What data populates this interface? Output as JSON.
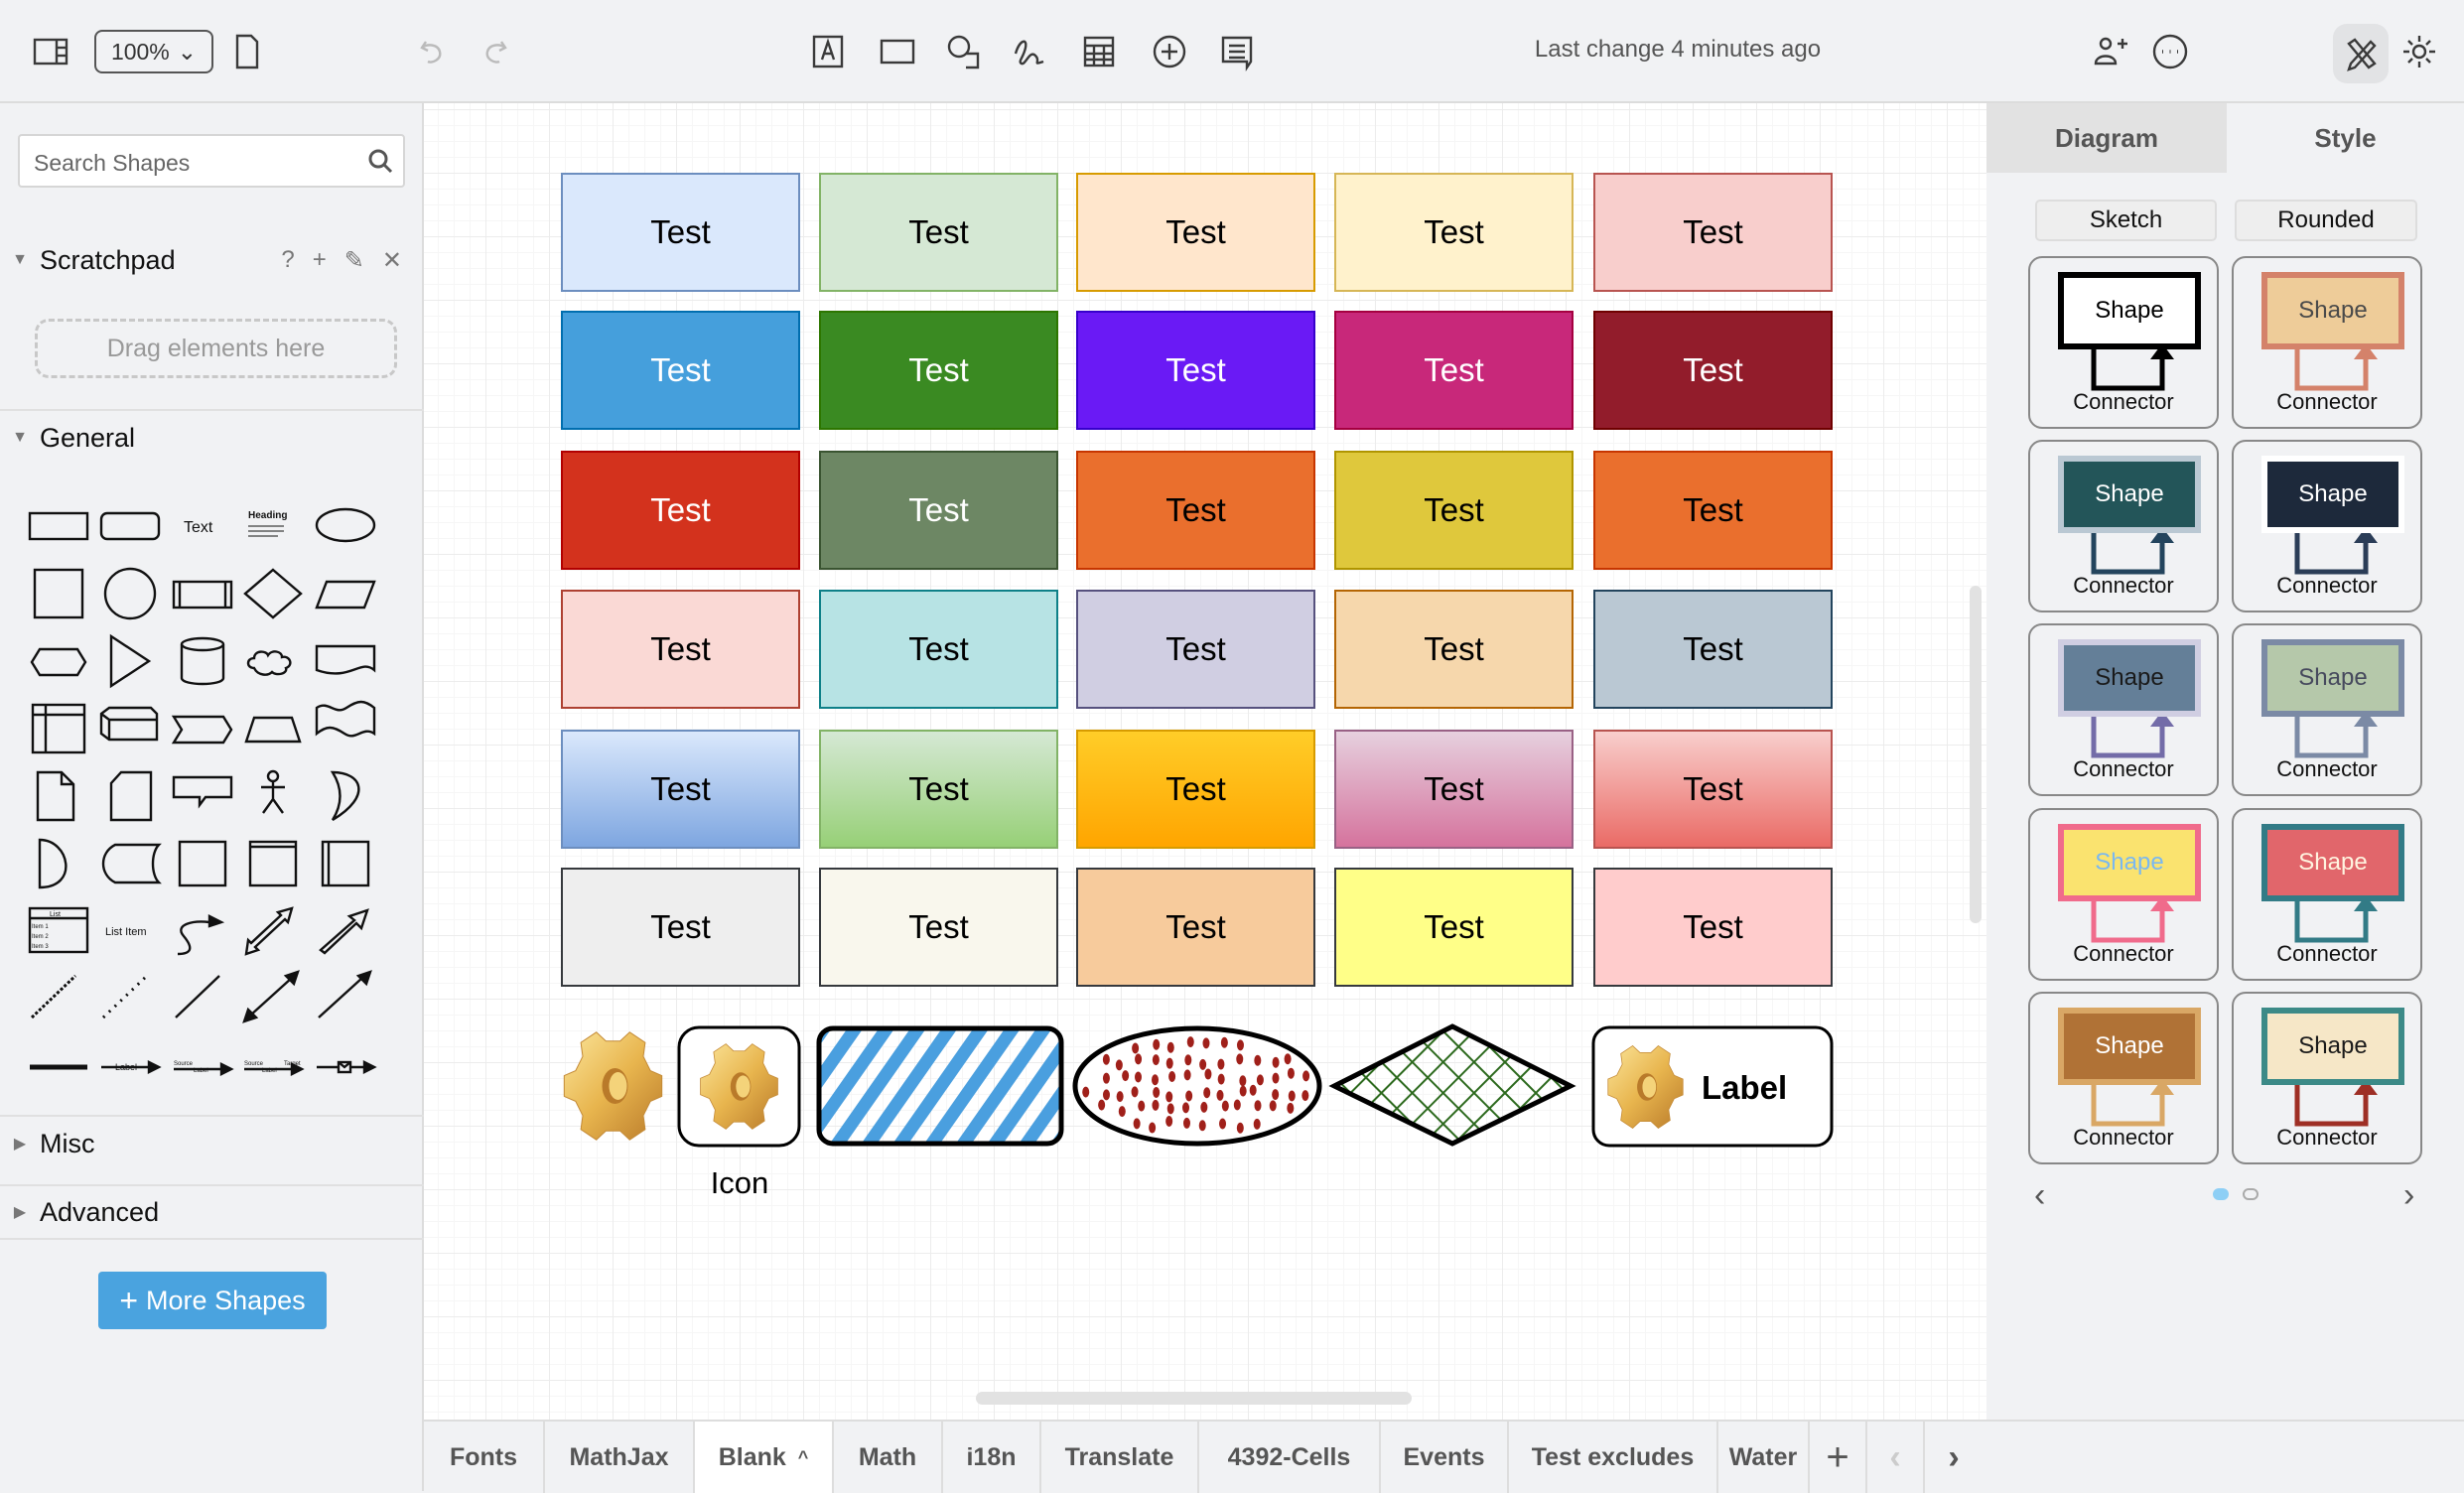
{
  "toolbar": {
    "zoom": "100%",
    "last_change": "Last change 4 minutes ago",
    "icons": [
      "format-panel-icon",
      "page-icon",
      "undo-icon",
      "redo-icon",
      "text-icon",
      "rectangle-icon",
      "shapes-icon",
      "freehand-icon",
      "table-icon",
      "insert-icon",
      "comment-icon",
      "share-icon",
      "more-icon",
      "edit-tools-icon",
      "theme-icon"
    ]
  },
  "sidebar": {
    "search_placeholder": "Search Shapes",
    "scratchpad": "Scratchpad",
    "scratchpad_actions": [
      "?",
      "+",
      "✎",
      "✕"
    ],
    "drag_hint": "Drag elements here",
    "general": "General",
    "misc": "Misc",
    "advanced": "Advanced",
    "more_shapes": "More Shapes",
    "shapes": [
      "rectangle",
      "rounded-rectangle",
      "text",
      "heading",
      "ellipse",
      "square",
      "circle",
      "process",
      "diamond",
      "parallelogram",
      "hexagon",
      "triangle",
      "cylinder",
      "cloud",
      "document",
      "internal-storage",
      "cube",
      "step",
      "trapezoid",
      "tape",
      "note",
      "card",
      "callout",
      "actor",
      "or",
      "delay",
      "data-storage",
      "container",
      "vertical-container",
      "horizontal-container",
      "list",
      "list-item",
      "curved-arrow",
      "bidirectional-arrow",
      "arrow",
      "dashed-line",
      "dotted-line",
      "line",
      "bidirectional-connector",
      "directional-connector",
      "link",
      "labeled-connector",
      "source-label-connector",
      "source-target-connector",
      "message-connector"
    ],
    "shape_labels": {
      "text": "Text",
      "heading": "Heading",
      "list": "List",
      "list_items": [
        "Item 1",
        "Item 2",
        "Item 3"
      ],
      "list_item": "List Item",
      "label": "Label",
      "source": "Source",
      "target": "Target"
    }
  },
  "canvas": {
    "rows": [
      [
        {
          "label": "Test",
          "fill": "#dae8fc",
          "stroke": "#6c8ebf",
          "font": "#000000"
        },
        {
          "label": "Test",
          "fill": "#d5e8d4",
          "stroke": "#82b366",
          "font": "#000000"
        },
        {
          "label": "Test",
          "fill": "#ffe6cc",
          "stroke": "#d79b00",
          "font": "#000000"
        },
        {
          "label": "Test",
          "fill": "#fff2cc",
          "stroke": "#d6b656",
          "font": "#000000"
        },
        {
          "label": "Test",
          "fill": "#f8cecc",
          "stroke": "#b85450",
          "font": "#000000"
        }
      ],
      [
        {
          "label": "Test",
          "fill": "#459fdc",
          "stroke": "#006eaf",
          "font": "#ffffff"
        },
        {
          "label": "Test",
          "fill": "#3a8a22",
          "stroke": "#2d7600",
          "font": "#ffffff"
        },
        {
          "label": "Test",
          "fill": "#6a1af5",
          "stroke": "#3700cc",
          "font": "#ffffff"
        },
        {
          "label": "Test",
          "fill": "#c8287a",
          "stroke": "#a50040",
          "font": "#ffffff"
        },
        {
          "label": "Test",
          "fill": "#921c2b",
          "stroke": "#6f0000",
          "font": "#ffffff"
        }
      ],
      [
        {
          "label": "Test",
          "fill": "#d3321d",
          "stroke": "#b20000",
          "font": "#ffffff"
        },
        {
          "label": "Test",
          "fill": "#6d8764",
          "stroke": "#3a5431",
          "font": "#ffffff"
        },
        {
          "label": "Test",
          "fill": "#ea6f2d",
          "stroke": "#c73500",
          "font": "#000000"
        },
        {
          "label": "Test",
          "fill": "#dfc83c",
          "stroke": "#b09500",
          "font": "#000000"
        },
        {
          "label": "Test",
          "fill": "#ea6f2d",
          "stroke": "#c73500",
          "font": "#000000"
        }
      ],
      [
        {
          "label": "Test",
          "fill": "#fad9d5",
          "stroke": "#ae4132",
          "font": "#000000"
        },
        {
          "label": "Test",
          "fill": "#b7e3e4",
          "stroke": "#0e8088",
          "font": "#000000"
        },
        {
          "label": "Test",
          "fill": "#d0cee2",
          "stroke": "#56517e",
          "font": "#000000"
        },
        {
          "label": "Test",
          "fill": "#f6d7ac",
          "stroke": "#b46504",
          "font": "#000000"
        },
        {
          "label": "Test",
          "fill": "#bac8d3",
          "stroke": "#23445d",
          "font": "#000000"
        }
      ],
      [
        {
          "label": "Test",
          "fill": "#dae8fc",
          "fill2": "#7ea6e0",
          "stroke": "#6c8ebf",
          "font": "#000000"
        },
        {
          "label": "Test",
          "fill": "#d5e8d4",
          "fill2": "#97d077",
          "stroke": "#82b366",
          "font": "#000000"
        },
        {
          "label": "Test",
          "fill": "#ffcd28",
          "fill2": "#ffa500",
          "stroke": "#d79b00",
          "font": "#000000"
        },
        {
          "label": "Test",
          "fill": "#e6d0de",
          "fill2": "#d5739d",
          "stroke": "#996185",
          "font": "#000000"
        },
        {
          "label": "Test",
          "fill": "#f8cecc",
          "fill2": "#ea6b66",
          "stroke": "#b85450",
          "font": "#000000"
        }
      ],
      [
        {
          "label": "Test",
          "fill": "#eeeeee",
          "stroke": "#36393d",
          "font": "#000000"
        },
        {
          "label": "Test",
          "fill": "#f9f7ed",
          "stroke": "#36393d",
          "font": "#000000"
        },
        {
          "label": "Test",
          "fill": "#f7cb9c",
          "stroke": "#36393d",
          "font": "#000000"
        },
        {
          "label": "Test",
          "fill": "#ffff88",
          "stroke": "#36393d",
          "font": "#000000"
        },
        {
          "label": "Test",
          "fill": "#ffcccc",
          "stroke": "#36393d",
          "font": "#000000"
        }
      ]
    ],
    "icon_label": "Icon",
    "label_box": "Label",
    "colors": {
      "hatch": "#4a9fdf",
      "dots": "#a0201a",
      "cross": "#2d6a1e"
    }
  },
  "right_panel": {
    "tabs": [
      "Diagram",
      "Style"
    ],
    "active_tab": "Style",
    "buttons": [
      "Sketch",
      "Rounded"
    ],
    "themes": [
      {
        "shape": "Shape",
        "connector": "Connector",
        "fill": "#ffffff",
        "stroke": "#000000",
        "font": "#000000",
        "edge": "#000000"
      },
      {
        "shape": "Shape",
        "connector": "Connector",
        "fill": "#eecc99",
        "stroke": "#d4826a",
        "font": "#4a4a4a",
        "edge": "#d4826a"
      },
      {
        "shape": "Shape",
        "connector": "Connector",
        "fill": "#235559",
        "stroke": "#bac8d3",
        "font": "#ffffff",
        "edge": "#23445d"
      },
      {
        "shape": "Shape",
        "connector": "Connector",
        "fill": "#1d293b",
        "stroke": "#ffffff",
        "font": "#ffffff",
        "edge": "#2b3d57"
      },
      {
        "shape": "Shape",
        "connector": "Connector",
        "fill": "#647f98",
        "stroke": "#d0cee2",
        "font": "#1a1a1a",
        "edge": "#736ca8"
      },
      {
        "shape": "Shape",
        "connector": "Connector",
        "fill": "#b5c8aa",
        "stroke": "#7b8aa5",
        "font": "#46495d",
        "edge": "#7b8aa5"
      },
      {
        "shape": "Shape",
        "connector": "Connector",
        "fill": "#fae36f",
        "stroke": "#f06b8b",
        "font": "#7ab8f0",
        "edge": "#f06b8b"
      },
      {
        "shape": "Shape",
        "connector": "Connector",
        "fill": "#e1666b",
        "stroke": "#327b86",
        "font": "#fff4e0",
        "edge": "#327b86"
      },
      {
        "shape": "Shape",
        "connector": "Connector",
        "fill": "#b07236",
        "stroke": "#d9a765",
        "font": "#ffffff",
        "edge": "#d9a765"
      },
      {
        "shape": "Shape",
        "connector": "Connector",
        "fill": "#f6e7c7",
        "stroke": "#3c8a87",
        "font": "#1a1a1a",
        "edge": "#9e2f25"
      }
    ],
    "page": 1,
    "pages": 2
  },
  "tabs": {
    "items": [
      "Fonts",
      "MathJax",
      "Blank",
      "Math",
      "i18n",
      "Translate",
      "4392-Cells",
      "Events",
      "Test excludes",
      "Water"
    ],
    "active": "Blank"
  }
}
